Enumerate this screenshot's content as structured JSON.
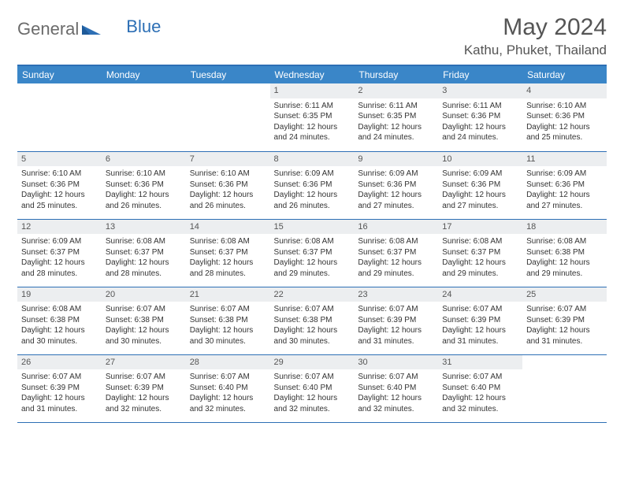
{
  "brand": {
    "word1": "General",
    "word2": "Blue"
  },
  "title": "May 2024",
  "location": "Kathu, Phuket, Thailand",
  "colors": {
    "header_bg": "#3a86c8",
    "border": "#2d6fb5",
    "daybar": "#eceef0",
    "text": "#333333",
    "title_text": "#555555"
  },
  "weekdays": [
    "Sunday",
    "Monday",
    "Tuesday",
    "Wednesday",
    "Thursday",
    "Friday",
    "Saturday"
  ],
  "weeks": [
    [
      {
        "n": "",
        "sr": "",
        "ss": "",
        "dl": ""
      },
      {
        "n": "",
        "sr": "",
        "ss": "",
        "dl": ""
      },
      {
        "n": "",
        "sr": "",
        "ss": "",
        "dl": ""
      },
      {
        "n": "1",
        "sr": "6:11 AM",
        "ss": "6:35 PM",
        "dl": "12 hours and 24 minutes."
      },
      {
        "n": "2",
        "sr": "6:11 AM",
        "ss": "6:35 PM",
        "dl": "12 hours and 24 minutes."
      },
      {
        "n": "3",
        "sr": "6:11 AM",
        "ss": "6:36 PM",
        "dl": "12 hours and 24 minutes."
      },
      {
        "n": "4",
        "sr": "6:10 AM",
        "ss": "6:36 PM",
        "dl": "12 hours and 25 minutes."
      }
    ],
    [
      {
        "n": "5",
        "sr": "6:10 AM",
        "ss": "6:36 PM",
        "dl": "12 hours and 25 minutes."
      },
      {
        "n": "6",
        "sr": "6:10 AM",
        "ss": "6:36 PM",
        "dl": "12 hours and 26 minutes."
      },
      {
        "n": "7",
        "sr": "6:10 AM",
        "ss": "6:36 PM",
        "dl": "12 hours and 26 minutes."
      },
      {
        "n": "8",
        "sr": "6:09 AM",
        "ss": "6:36 PM",
        "dl": "12 hours and 26 minutes."
      },
      {
        "n": "9",
        "sr": "6:09 AM",
        "ss": "6:36 PM",
        "dl": "12 hours and 27 minutes."
      },
      {
        "n": "10",
        "sr": "6:09 AM",
        "ss": "6:36 PM",
        "dl": "12 hours and 27 minutes."
      },
      {
        "n": "11",
        "sr": "6:09 AM",
        "ss": "6:36 PM",
        "dl": "12 hours and 27 minutes."
      }
    ],
    [
      {
        "n": "12",
        "sr": "6:09 AM",
        "ss": "6:37 PM",
        "dl": "12 hours and 28 minutes."
      },
      {
        "n": "13",
        "sr": "6:08 AM",
        "ss": "6:37 PM",
        "dl": "12 hours and 28 minutes."
      },
      {
        "n": "14",
        "sr": "6:08 AM",
        "ss": "6:37 PM",
        "dl": "12 hours and 28 minutes."
      },
      {
        "n": "15",
        "sr": "6:08 AM",
        "ss": "6:37 PM",
        "dl": "12 hours and 29 minutes."
      },
      {
        "n": "16",
        "sr": "6:08 AM",
        "ss": "6:37 PM",
        "dl": "12 hours and 29 minutes."
      },
      {
        "n": "17",
        "sr": "6:08 AM",
        "ss": "6:37 PM",
        "dl": "12 hours and 29 minutes."
      },
      {
        "n": "18",
        "sr": "6:08 AM",
        "ss": "6:38 PM",
        "dl": "12 hours and 29 minutes."
      }
    ],
    [
      {
        "n": "19",
        "sr": "6:08 AM",
        "ss": "6:38 PM",
        "dl": "12 hours and 30 minutes."
      },
      {
        "n": "20",
        "sr": "6:07 AM",
        "ss": "6:38 PM",
        "dl": "12 hours and 30 minutes."
      },
      {
        "n": "21",
        "sr": "6:07 AM",
        "ss": "6:38 PM",
        "dl": "12 hours and 30 minutes."
      },
      {
        "n": "22",
        "sr": "6:07 AM",
        "ss": "6:38 PM",
        "dl": "12 hours and 30 minutes."
      },
      {
        "n": "23",
        "sr": "6:07 AM",
        "ss": "6:39 PM",
        "dl": "12 hours and 31 minutes."
      },
      {
        "n": "24",
        "sr": "6:07 AM",
        "ss": "6:39 PM",
        "dl": "12 hours and 31 minutes."
      },
      {
        "n": "25",
        "sr": "6:07 AM",
        "ss": "6:39 PM",
        "dl": "12 hours and 31 minutes."
      }
    ],
    [
      {
        "n": "26",
        "sr": "6:07 AM",
        "ss": "6:39 PM",
        "dl": "12 hours and 31 minutes."
      },
      {
        "n": "27",
        "sr": "6:07 AM",
        "ss": "6:39 PM",
        "dl": "12 hours and 32 minutes."
      },
      {
        "n": "28",
        "sr": "6:07 AM",
        "ss": "6:40 PM",
        "dl": "12 hours and 32 minutes."
      },
      {
        "n": "29",
        "sr": "6:07 AM",
        "ss": "6:40 PM",
        "dl": "12 hours and 32 minutes."
      },
      {
        "n": "30",
        "sr": "6:07 AM",
        "ss": "6:40 PM",
        "dl": "12 hours and 32 minutes."
      },
      {
        "n": "31",
        "sr": "6:07 AM",
        "ss": "6:40 PM",
        "dl": "12 hours and 32 minutes."
      },
      {
        "n": "",
        "sr": "",
        "ss": "",
        "dl": ""
      }
    ]
  ],
  "labels": {
    "sunrise": "Sunrise:",
    "sunset": "Sunset:",
    "daylight": "Daylight:"
  }
}
